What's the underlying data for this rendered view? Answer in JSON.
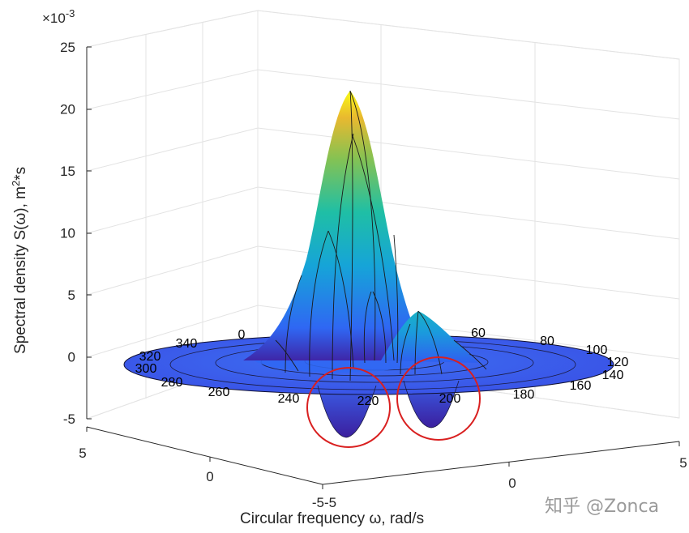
{
  "chart_data": {
    "type": "surface3d",
    "zlabel": "Spectral density S(ω), m",
    "zlabel_sup": "2",
    "zlabel_tail": "*s",
    "xlabel": "Circular frequency ω, rad/s",
    "exponent_base": "×10",
    "exponent_power": "-3",
    "zlim": [
      -5,
      25
    ],
    "zticks": [
      "25",
      "20",
      "15",
      "10",
      "5",
      "0",
      "-5"
    ],
    "left_axis_ticks": [
      "5",
      "0",
      "-5"
    ],
    "right_axis_ticks": [
      "-5",
      "0",
      "5"
    ],
    "grid": true,
    "colormap": [
      "#3e26a8",
      "#2f67f3",
      "#16a4d8",
      "#1fbfa5",
      "#86c252",
      "#e9b92f",
      "#f9fb14"
    ],
    "peak_value": 21.5,
    "trough_values": [
      -6.3,
      -5.6
    ],
    "angle_labels": [
      "0",
      "60",
      "80",
      "100",
      "120",
      "140",
      "160",
      "180",
      "200",
      "220",
      "240",
      "260",
      "280",
      "300",
      "320",
      "340"
    ],
    "highlight_color": "#d92020",
    "highlights": [
      "220",
      "200"
    ]
  },
  "watermark": "知乎 @Zonca"
}
